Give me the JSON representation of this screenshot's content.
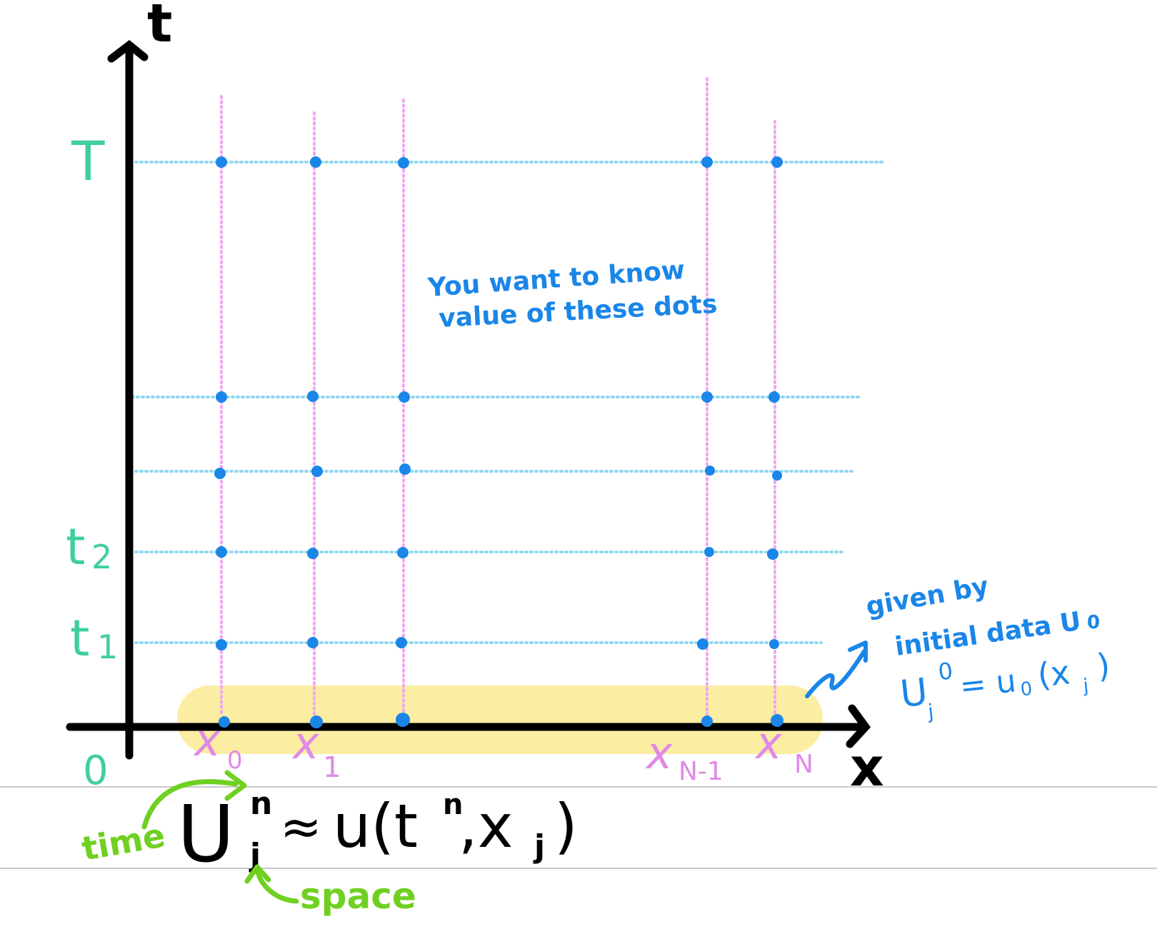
{
  "colors": {
    "axis": "#000000",
    "grid_h": "#8fd8f2",
    "grid_v": "#f0a8ef",
    "dot": "#1a86e8",
    "time_label": "#3fcf9e",
    "space_label": "#e08ae6",
    "note": "#1a86e8",
    "highlight": "#fbec99",
    "green_note": "#6fd021",
    "ruled_line": "#c9c9c9"
  },
  "axes": {
    "t_label": "t",
    "x_label": "x",
    "origin_label": "0"
  },
  "time_labels": [
    "T",
    "t",
    "2",
    "t",
    "1"
  ],
  "space_labels": {
    "x0": "x",
    "x0_sub": "0",
    "x1": "x",
    "x1_sub": "1",
    "xN1": "x",
    "xN1_sub": "N-1",
    "xN": "x",
    "xN_sub": "N"
  },
  "note_dots": {
    "line1": "You want to know",
    "line2": "value of these dots"
  },
  "note_initial": {
    "line1": "given by",
    "line2": "initial data U",
    "line2_sub": "0",
    "eq_U": "U",
    "eq_sub": "j",
    "eq_sup": "0",
    "eq_rhs": "= u",
    "eq_rhs_sub": "0",
    "eq_arg": "(x",
    "eq_arg_sub": "j",
    "eq_close": ")"
  },
  "formula": {
    "U": "U",
    "sup": "n",
    "sub": "j",
    "approx": "≈",
    "rhs": "u(t",
    "rhs_sup": "n",
    "rhs_mid": ",x",
    "rhs_sub": "j",
    "rhs_close": ")"
  },
  "annotations": {
    "time": "time",
    "space": "space"
  }
}
